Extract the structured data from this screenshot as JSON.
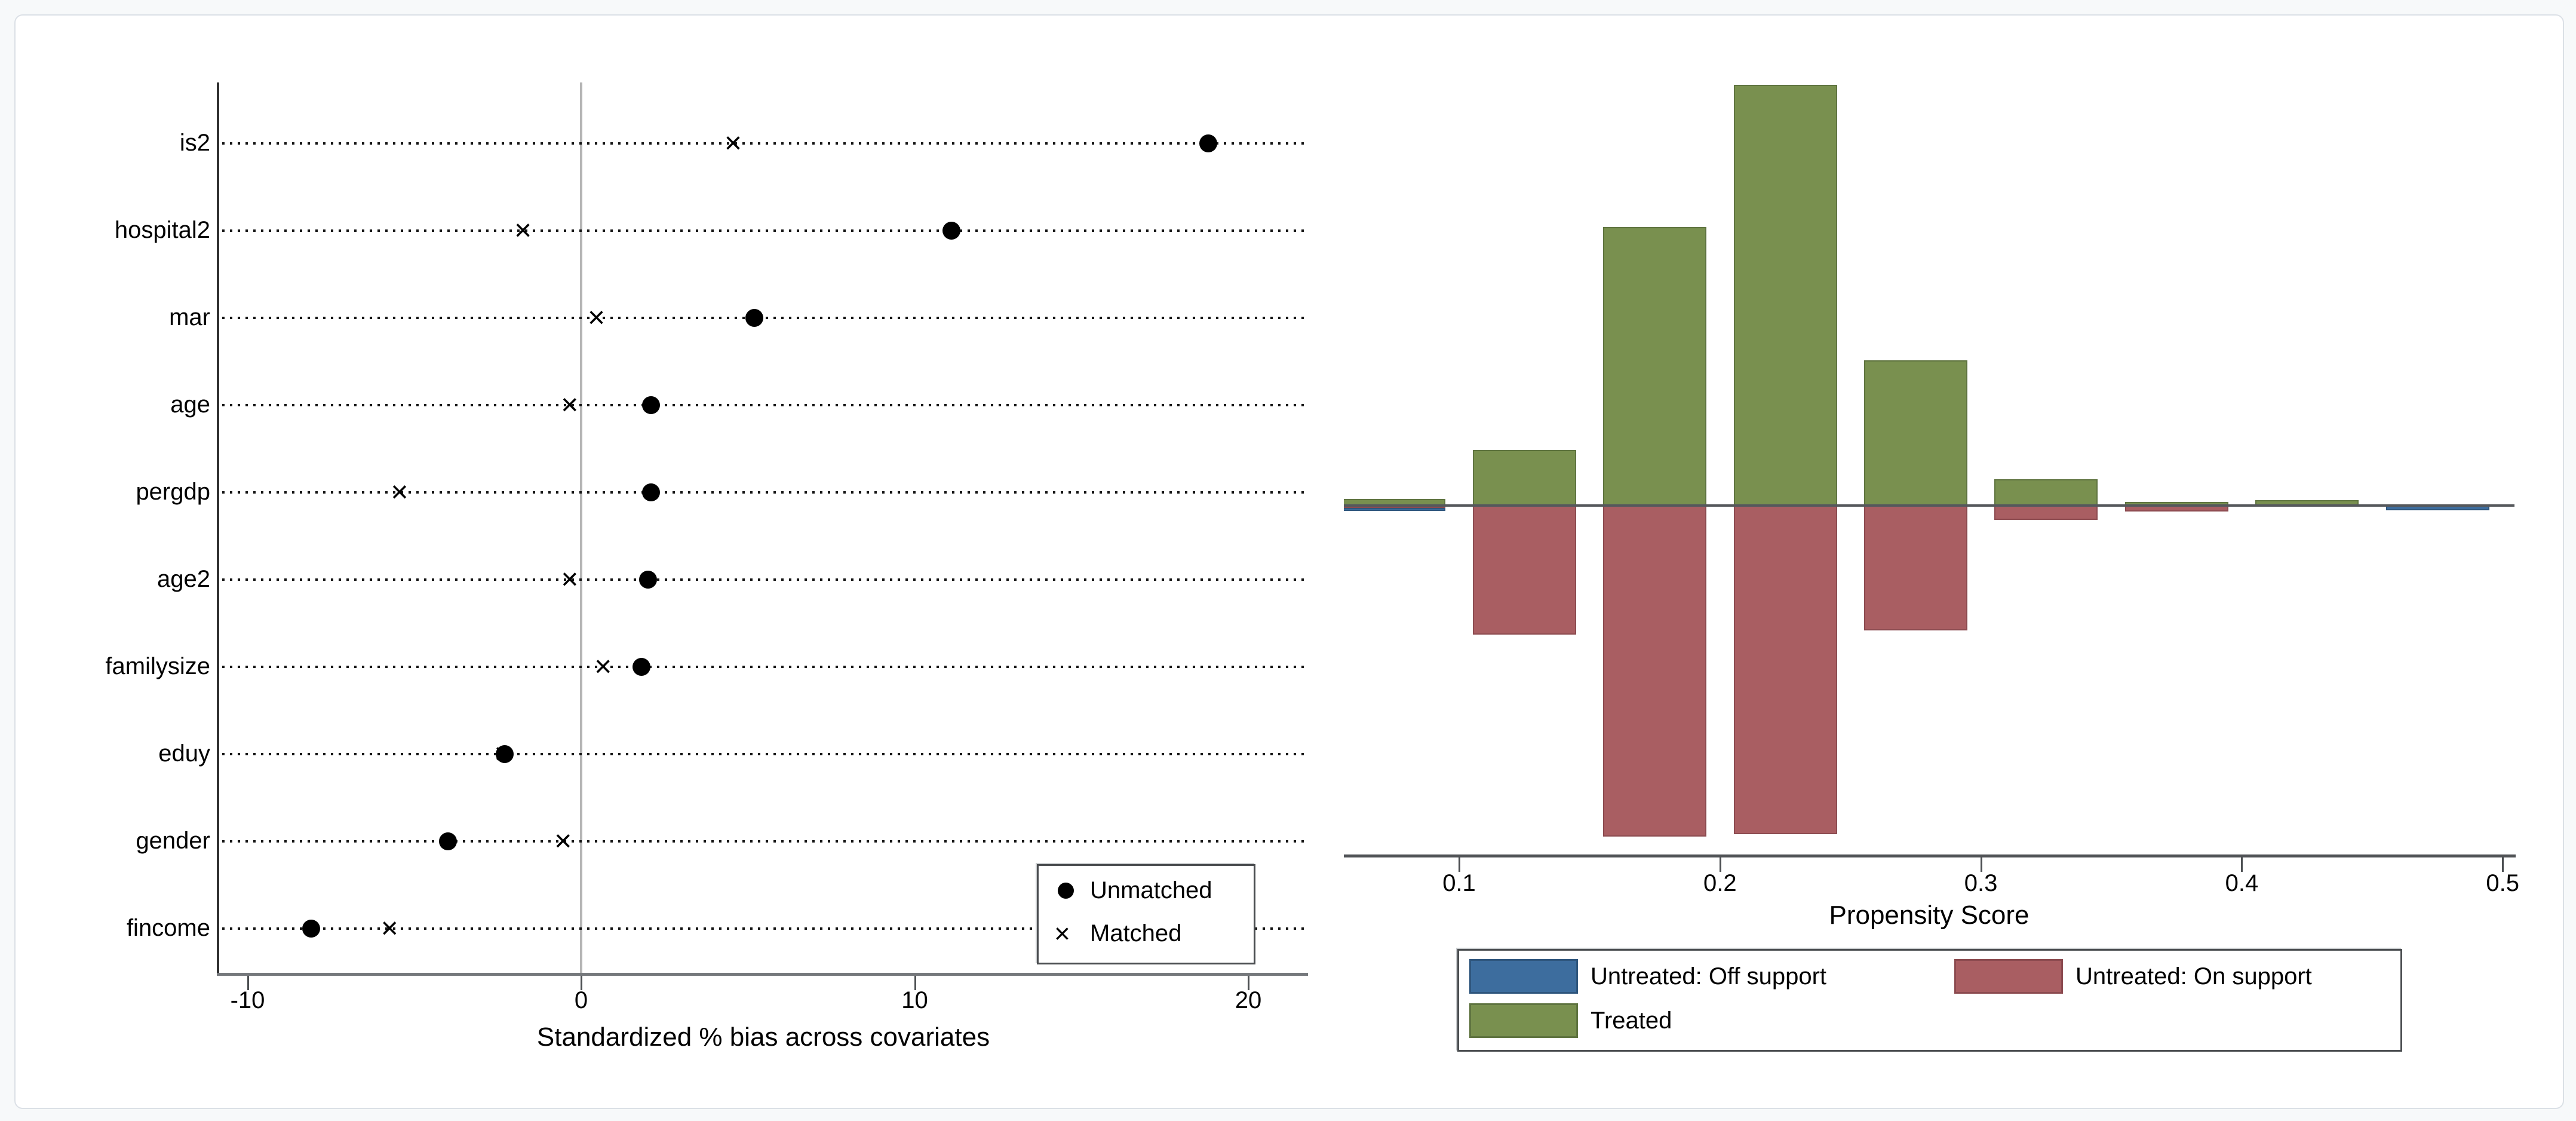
{
  "page": {
    "background_color": "#f7f9fa",
    "card_background": "#ffffff",
    "card_border_color": "#dbe0e6"
  },
  "colors": {
    "treated_green": "#79904f",
    "treated_green_border": "#5f7440",
    "untreated_red": "#a95e62",
    "untreated_red_border": "#8c4b50",
    "off_support_blue": "#3d6d9e",
    "off_support_blue_border": "#2f567d",
    "axis_dark": "#4f5255",
    "axis_gray": "#75787c",
    "zero_line_gray": "#b5b5b5",
    "marker_black": "#000000"
  },
  "chart_data": [
    {
      "type": "scatter",
      "title": "",
      "xlabel": "Standardized % bias across covariates",
      "ylabel": "",
      "x_tick_labels": [
        "-10",
        "0",
        "10",
        "20"
      ],
      "x_tick_values": [
        -10,
        0,
        10,
        20
      ],
      "xlim": [
        -10.9,
        21.8
      ],
      "grid": "horizontal dotted leader lines per category",
      "zero_reference_line_x": 0,
      "categories": [
        "is2",
        "hospital2",
        "mar",
        "age",
        "pergdp",
        "age2",
        "familysize",
        "eduy",
        "gender",
        "fincome"
      ],
      "series": [
        {
          "name": "Unmatched",
          "marker": "circle",
          "values": [
            18.8,
            11.1,
            5.2,
            2.1,
            2.1,
            2.0,
            1.8,
            -2.3,
            -4.0,
            -8.1
          ]
        },
        {
          "name": "Matched",
          "marker": "x",
          "values": [
            4.6,
            -1.7,
            0.5,
            -0.3,
            -5.4,
            -0.3,
            0.7,
            -2.3,
            -0.5,
            -5.7
          ]
        }
      ],
      "legend": {
        "position": "inside bottom-right",
        "items": [
          {
            "label": "Unmatched",
            "marker": "circle"
          },
          {
            "label": "Matched",
            "marker": "x"
          }
        ]
      }
    },
    {
      "type": "bar",
      "title": "",
      "xlabel": "Propensity Score",
      "ylabel": "",
      "x_tick_labels": [
        "0.1",
        "0.2",
        "0.3",
        "0.4",
        "0.5"
      ],
      "x_tick_values": [
        0.1,
        0.2,
        0.3,
        0.4,
        0.5
      ],
      "xlim": [
        0.056,
        0.505
      ],
      "bin_width": 0.05,
      "bin_centers": [
        0.075,
        0.125,
        0.175,
        0.225,
        0.275,
        0.325,
        0.375,
        0.425,
        0.475
      ],
      "y_units": "relative frequency (axis unlabeled); heights normalized so tallest Treated bar = 1",
      "baseline": "Treated bars drawn upward, Untreated bars drawn downward from a shared zero line",
      "series": [
        {
          "name": "Treated",
          "direction": "up",
          "values": [
            0.016,
            0.132,
            0.662,
            1.0,
            0.345,
            0.063,
            0.009,
            0.013,
            0
          ]
        },
        {
          "name": "Untreated: On support",
          "direction": "down",
          "values": [
            0.006,
            0.307,
            0.787,
            0.781,
            0.297,
            0.034,
            0.014,
            0,
            0
          ]
        },
        {
          "name": "Untreated: Off support",
          "direction": "down",
          "values": [
            0.007,
            0,
            0,
            0,
            0,
            0,
            0,
            0,
            0.011
          ]
        }
      ],
      "legend": {
        "position": "below plot",
        "items": [
          {
            "label": "Untreated: Off support",
            "color": "#3d6d9e"
          },
          {
            "label": "Untreated: On support",
            "color": "#a95e62"
          },
          {
            "label": "Treated",
            "color": "#79904f"
          }
        ]
      }
    }
  ]
}
